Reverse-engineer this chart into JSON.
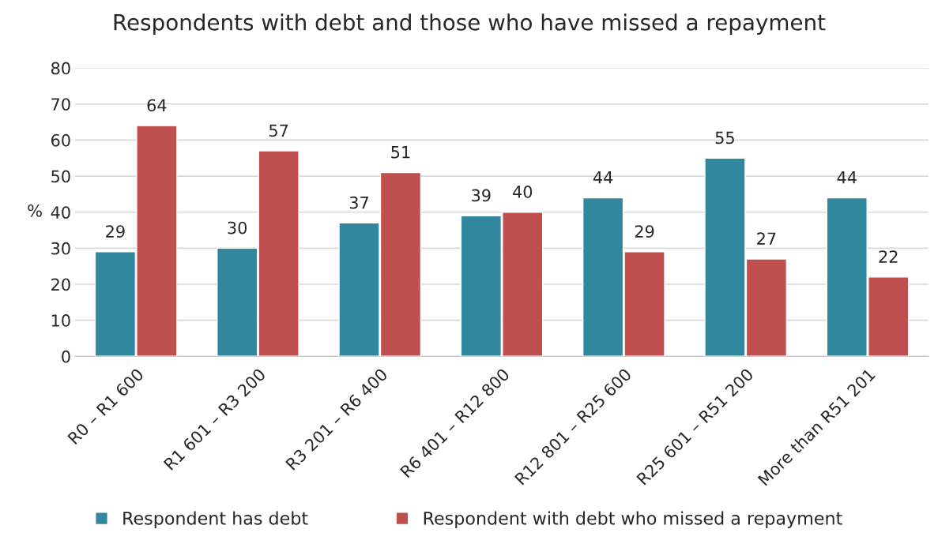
{
  "chart_data": {
    "type": "bar",
    "title": "Respondents with debt and those who have missed a repayment",
    "ylabel": "%",
    "categories": [
      "R0 – R1 600",
      "R1 601 – R3 200",
      "R3 201 – R6 400",
      "R6 401 – R12 800",
      "R12 801 – R25 600",
      "R25 601 – R51 200",
      "More than R51 201"
    ],
    "series": [
      {
        "name": "Respondent has debt",
        "color": "#31889e",
        "values": [
          29,
          30,
          37,
          39,
          44,
          55,
          44
        ]
      },
      {
        "name": "Respondent with debt who missed a repayment",
        "color": "#c0504f",
        "values": [
          64,
          57,
          51,
          40,
          29,
          27,
          22
        ]
      }
    ],
    "ylim": [
      0,
      80
    ],
    "yticks": [
      0,
      10,
      20,
      30,
      40,
      50,
      60,
      70,
      80
    ],
    "grid": "y",
    "legend": "bottom",
    "data_labels": true
  }
}
